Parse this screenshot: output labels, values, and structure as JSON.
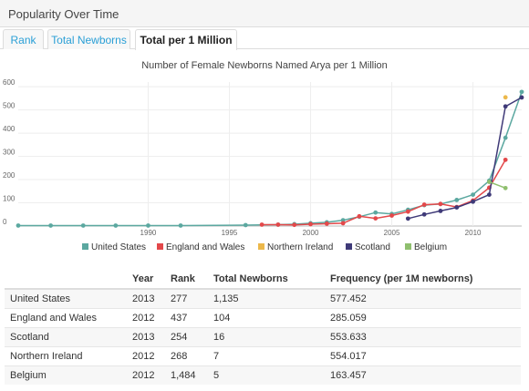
{
  "panel": {
    "title": "Popularity Over Time"
  },
  "tabs": [
    {
      "label": "Rank",
      "active": false
    },
    {
      "label": "Total Newborns",
      "active": false
    },
    {
      "label": "Total per 1 Million",
      "active": true
    }
  ],
  "chart_data": {
    "type": "line",
    "title": "Number of Female Newborns Named Arya per 1 Million",
    "xlabel": "",
    "ylabel": "",
    "xlim": [
      1982,
      2013
    ],
    "ylim": [
      0,
      620
    ],
    "x_ticks": [
      1990,
      1995,
      2000,
      2005,
      2010
    ],
    "y_ticks": [
      0,
      100,
      200,
      300,
      400,
      500,
      600
    ],
    "grid": true,
    "legend_position": "bottom",
    "series": [
      {
        "name": "United States",
        "color": "#5ba8a0",
        "points": [
          [
            1982,
            2
          ],
          [
            1984,
            2
          ],
          [
            1986,
            2
          ],
          [
            1988,
            2
          ],
          [
            1990,
            2
          ],
          [
            1992,
            2
          ],
          [
            1996,
            4
          ],
          [
            1998,
            6
          ],
          [
            1999,
            8
          ],
          [
            2000,
            12
          ],
          [
            2001,
            16
          ],
          [
            2002,
            25
          ],
          [
            2003,
            40
          ],
          [
            2004,
            58
          ],
          [
            2005,
            52
          ],
          [
            2006,
            70
          ],
          [
            2007,
            90
          ],
          [
            2008,
            95
          ],
          [
            2009,
            112
          ],
          [
            2010,
            135
          ],
          [
            2011,
            195
          ],
          [
            2012,
            380
          ],
          [
            2013,
            577.452
          ]
        ]
      },
      {
        "name": "England and Wales",
        "color": "#e3484a",
        "points": [
          [
            1997,
            6
          ],
          [
            1998,
            6
          ],
          [
            1999,
            5
          ],
          [
            2000,
            8
          ],
          [
            2001,
            10
          ],
          [
            2002,
            12
          ],
          [
            2003,
            42
          ],
          [
            2004,
            33
          ],
          [
            2005,
            45
          ],
          [
            2006,
            62
          ],
          [
            2007,
            92
          ],
          [
            2008,
            95
          ],
          [
            2009,
            82
          ],
          [
            2010,
            110
          ],
          [
            2011,
            165
          ],
          [
            2012,
            285.059
          ]
        ]
      },
      {
        "name": "Northern Ireland",
        "color": "#ecb84b",
        "points": [
          [
            2012,
            554.017
          ]
        ]
      },
      {
        "name": "Scotland",
        "color": "#3f3a78",
        "points": [
          [
            2006,
            32
          ],
          [
            2007,
            50
          ],
          [
            2008,
            65
          ],
          [
            2009,
            80
          ],
          [
            2010,
            105
          ],
          [
            2011,
            135
          ],
          [
            2012,
            515
          ],
          [
            2013,
            553.633
          ]
        ]
      },
      {
        "name": "Belgium",
        "color": "#8fbf6e",
        "points": [
          [
            2011,
            190
          ],
          [
            2012,
            163.457
          ]
        ]
      }
    ]
  },
  "table": {
    "headers": [
      "",
      "Year",
      "Rank",
      "Total Newborns",
      "Frequency (per 1M newborns)"
    ],
    "rows": [
      [
        "United States",
        "2013",
        "277",
        "1,135",
        "577.452"
      ],
      [
        "England and Wales",
        "2012",
        "437",
        "104",
        "285.059"
      ],
      [
        "Scotland",
        "2013",
        "254",
        "16",
        "553.633"
      ],
      [
        "Northern Ireland",
        "2012",
        "268",
        "7",
        "554.017"
      ],
      [
        "Belgium",
        "2012",
        "1,484",
        "5",
        "163.457"
      ]
    ]
  }
}
